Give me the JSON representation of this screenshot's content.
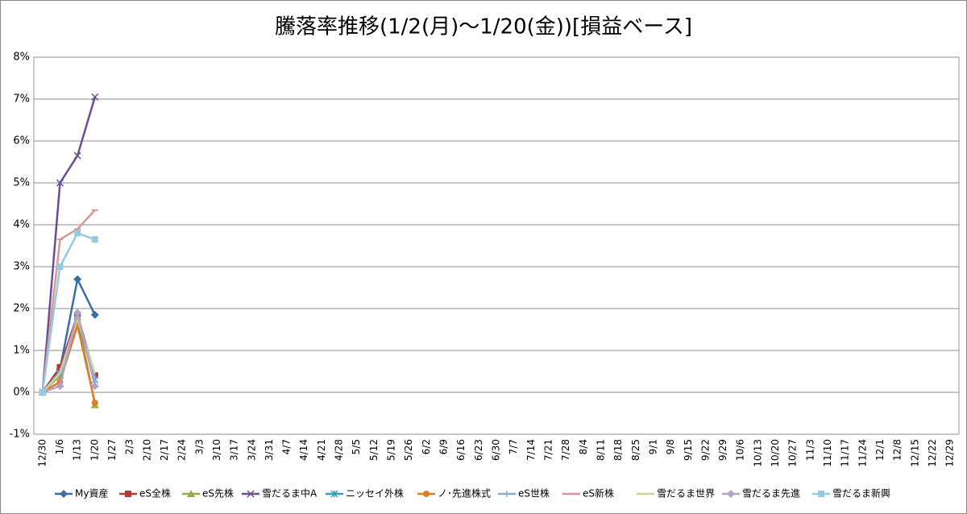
{
  "chart_data": {
    "type": "line",
    "title": "騰落率推移(1/2(月)～1/20(金))[損益ベース]",
    "categories": [
      "12/30",
      "1/6",
      "1/13",
      "1/20",
      "1/27",
      "2/3",
      "2/10",
      "2/17",
      "2/24",
      "3/3",
      "3/10",
      "3/17",
      "3/24",
      "3/31",
      "4/7",
      "4/14",
      "4/21",
      "4/28",
      "5/5",
      "5/12",
      "5/19",
      "5/26",
      "6/2",
      "6/9",
      "6/16",
      "6/23",
      "6/30",
      "7/7",
      "7/14",
      "7/21",
      "7/28",
      "8/4",
      "8/11",
      "8/18",
      "8/25",
      "9/1",
      "9/8",
      "9/15",
      "9/22",
      "9/29",
      "10/6",
      "10/13",
      "10/20",
      "10/27",
      "11/3",
      "11/10",
      "11/17",
      "11/24",
      "12/1",
      "12/8",
      "12/15",
      "12/22",
      "12/29"
    ],
    "ylim": [
      -1,
      8
    ],
    "yticks": [
      {
        "value": -1,
        "label": "-1%"
      },
      {
        "value": 0,
        "label": "0%"
      },
      {
        "value": 1,
        "label": "1%"
      },
      {
        "value": 2,
        "label": "2%"
      },
      {
        "value": 3,
        "label": "3%"
      },
      {
        "value": 4,
        "label": "4%"
      },
      {
        "value": 5,
        "label": "5%"
      },
      {
        "value": 6,
        "label": "6%"
      },
      {
        "value": 7,
        "label": "7%"
      },
      {
        "value": 8,
        "label": "8%"
      }
    ],
    "grid": true,
    "legend": "bottom",
    "series": [
      {
        "name": "My資産",
        "color": "#3a6ea5",
        "marker": "diamond",
        "values": [
          0,
          0.55,
          2.7,
          1.85,
          null,
          null,
          null,
          null,
          null,
          null,
          null,
          null,
          null,
          null,
          null,
          null,
          null,
          null,
          null,
          null,
          null,
          null,
          null,
          null,
          null,
          null,
          null,
          null,
          null,
          null,
          null,
          null,
          null,
          null,
          null,
          null,
          null,
          null,
          null,
          null,
          null,
          null,
          null,
          null,
          null,
          null,
          null,
          null,
          null,
          null,
          null,
          null,
          null
        ]
      },
      {
        "name": "eS全株",
        "color": "#b03a3a",
        "marker": "square",
        "values": [
          0,
          0.6,
          1.85,
          0.4,
          null,
          null,
          null,
          null,
          null,
          null,
          null,
          null,
          null,
          null,
          null,
          null,
          null,
          null,
          null,
          null,
          null,
          null,
          null,
          null,
          null,
          null,
          null,
          null,
          null,
          null,
          null,
          null,
          null,
          null,
          null,
          null,
          null,
          null,
          null,
          null,
          null,
          null,
          null,
          null,
          null,
          null,
          null,
          null,
          null,
          null,
          null,
          null,
          null
        ]
      },
      {
        "name": "eS先株",
        "color": "#8db04a",
        "marker": "triangle",
        "values": [
          0,
          0.4,
          1.8,
          -0.3,
          null,
          null,
          null,
          null,
          null,
          null,
          null,
          null,
          null,
          null,
          null,
          null,
          null,
          null,
          null,
          null,
          null,
          null,
          null,
          null,
          null,
          null,
          null,
          null,
          null,
          null,
          null,
          null,
          null,
          null,
          null,
          null,
          null,
          null,
          null,
          null,
          null,
          null,
          null,
          null,
          null,
          null,
          null,
          null,
          null,
          null,
          null,
          null,
          null
        ]
      },
      {
        "name": "雪だるま中A",
        "color": "#6c4d94",
        "marker": "x",
        "values": [
          0,
          5.0,
          5.65,
          7.05,
          null,
          null,
          null,
          null,
          null,
          null,
          null,
          null,
          null,
          null,
          null,
          null,
          null,
          null,
          null,
          null,
          null,
          null,
          null,
          null,
          null,
          null,
          null,
          null,
          null,
          null,
          null,
          null,
          null,
          null,
          null,
          null,
          null,
          null,
          null,
          null,
          null,
          null,
          null,
          null,
          null,
          null,
          null,
          null,
          null,
          null,
          null,
          null,
          null
        ]
      },
      {
        "name": "ニッセイ外株",
        "color": "#3aa0c0",
        "marker": "star",
        "values": [
          0,
          0.45,
          1.75,
          0.3,
          null,
          null,
          null,
          null,
          null,
          null,
          null,
          null,
          null,
          null,
          null,
          null,
          null,
          null,
          null,
          null,
          null,
          null,
          null,
          null,
          null,
          null,
          null,
          null,
          null,
          null,
          null,
          null,
          null,
          null,
          null,
          null,
          null,
          null,
          null,
          null,
          null,
          null,
          null,
          null,
          null,
          null,
          null,
          null,
          null,
          null,
          null,
          null,
          null
        ]
      },
      {
        "name": "ノ･先進株式",
        "color": "#e07b2a",
        "marker": "circle",
        "values": [
          0,
          0.25,
          1.6,
          -0.25,
          null,
          null,
          null,
          null,
          null,
          null,
          null,
          null,
          null,
          null,
          null,
          null,
          null,
          null,
          null,
          null,
          null,
          null,
          null,
          null,
          null,
          null,
          null,
          null,
          null,
          null,
          null,
          null,
          null,
          null,
          null,
          null,
          null,
          null,
          null,
          null,
          null,
          null,
          null,
          null,
          null,
          null,
          null,
          null,
          null,
          null,
          null,
          null,
          null
        ]
      },
      {
        "name": "eS世株",
        "color": "#8fa8d8",
        "marker": "plus",
        "values": [
          0,
          0.5,
          1.8,
          0.35,
          null,
          null,
          null,
          null,
          null,
          null,
          null,
          null,
          null,
          null,
          null,
          null,
          null,
          null,
          null,
          null,
          null,
          null,
          null,
          null,
          null,
          null,
          null,
          null,
          null,
          null,
          null,
          null,
          null,
          null,
          null,
          null,
          null,
          null,
          null,
          null,
          null,
          null,
          null,
          null,
          null,
          null,
          null,
          null,
          null,
          null,
          null,
          null,
          null
        ]
      },
      {
        "name": "eS新株",
        "color": "#d99694",
        "marker": "dash",
        "values": [
          0,
          3.65,
          3.9,
          4.35,
          null,
          null,
          null,
          null,
          null,
          null,
          null,
          null,
          null,
          null,
          null,
          null,
          null,
          null,
          null,
          null,
          null,
          null,
          null,
          null,
          null,
          null,
          null,
          null,
          null,
          null,
          null,
          null,
          null,
          null,
          null,
          null,
          null,
          null,
          null,
          null,
          null,
          null,
          null,
          null,
          null,
          null,
          null,
          null,
          null,
          null,
          null,
          null,
          null
        ]
      },
      {
        "name": "雪だるま世界",
        "color": "#c3d69b",
        "marker": "none",
        "values": [
          0,
          0.45,
          1.75,
          0.45,
          null,
          null,
          null,
          null,
          null,
          null,
          null,
          null,
          null,
          null,
          null,
          null,
          null,
          null,
          null,
          null,
          null,
          null,
          null,
          null,
          null,
          null,
          null,
          null,
          null,
          null,
          null,
          null,
          null,
          null,
          null,
          null,
          null,
          null,
          null,
          null,
          null,
          null,
          null,
          null,
          null,
          null,
          null,
          null,
          null,
          null,
          null,
          null,
          null
        ]
      },
      {
        "name": "雪だるま先進",
        "color": "#b3a2c7",
        "marker": "diamond",
        "values": [
          0,
          0.15,
          1.9,
          0.15,
          null,
          null,
          null,
          null,
          null,
          null,
          null,
          null,
          null,
          null,
          null,
          null,
          null,
          null,
          null,
          null,
          null,
          null,
          null,
          null,
          null,
          null,
          null,
          null,
          null,
          null,
          null,
          null,
          null,
          null,
          null,
          null,
          null,
          null,
          null,
          null,
          null,
          null,
          null,
          null,
          null,
          null,
          null,
          null,
          null,
          null,
          null,
          null,
          null
        ]
      },
      {
        "name": "雪だるま新興",
        "color": "#93cddd",
        "marker": "square",
        "values": [
          0,
          3.0,
          3.8,
          3.65,
          null,
          null,
          null,
          null,
          null,
          null,
          null,
          null,
          null,
          null,
          null,
          null,
          null,
          null,
          null,
          null,
          null,
          null,
          null,
          null,
          null,
          null,
          null,
          null,
          null,
          null,
          null,
          null,
          null,
          null,
          null,
          null,
          null,
          null,
          null,
          null,
          null,
          null,
          null,
          null,
          null,
          null,
          null,
          null,
          null,
          null,
          null,
          null,
          null
        ]
      }
    ]
  }
}
